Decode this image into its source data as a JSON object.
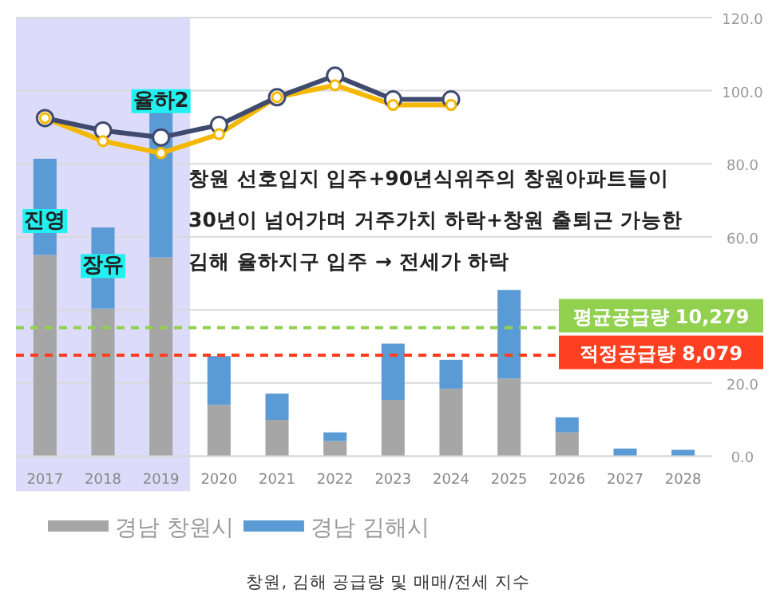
{
  "chart_data": {
    "type": "bar",
    "stacked": true,
    "categories": [
      "2017",
      "2018",
      "2019",
      "2020",
      "2021",
      "2022",
      "2023",
      "2024",
      "2025",
      "2026",
      "2027",
      "2028"
    ],
    "series": [
      {
        "name": "경남 창원시",
        "color": "#a6a6a6",
        "values": [
          16100,
          11800,
          15900,
          4100,
          2900,
          1200,
          4500,
          5400,
          6200,
          1900,
          0,
          0
        ]
      },
      {
        "name": "경남 김해시",
        "color": "#5b9bd5",
        "values": [
          7700,
          6500,
          11700,
          3900,
          2100,
          700,
          4500,
          2300,
          7100,
          1200,
          600,
          500
        ]
      },
      {
        "type": "line",
        "axis": "y2",
        "color": "#3f4a6e",
        "values": [
          92.5,
          89.1,
          87.2,
          90.6,
          98.2,
          104.1,
          97.6,
          97.6,
          null,
          null,
          null,
          null
        ]
      },
      {
        "type": "line",
        "axis": "y2",
        "color": "#f5b800",
        "values": [
          92.5,
          86.2,
          82.9,
          88.1,
          98.2,
          101.5,
          96.1,
          96.1,
          null,
          null,
          null,
          null
        ]
      }
    ],
    "ylim": [
      0,
      35100
    ],
    "y2lim": [
      0,
      120
    ],
    "y2ticks": [
      {
        "value": 0,
        "label": "0.0"
      },
      {
        "value": 20,
        "label": "20.0"
      },
      {
        "value": 40,
        "label": null
      },
      {
        "value": 60,
        "label": "60.0"
      },
      {
        "value": 80,
        "label": "80.0"
      },
      {
        "value": 100,
        "label": "100.0"
      },
      {
        "value": 120,
        "label": "120.0"
      }
    ],
    "grid": "y",
    "marker": "circle",
    "line_style": "solid",
    "legend": "bottom",
    "ref_lines": [
      {
        "axis": "y",
        "value": 10279,
        "label": "평균공급량 10,279",
        "color": "#92d050",
        "line_style": "dashed"
      },
      {
        "axis": "y",
        "value": 8079,
        "label": "적정공급량 8,079",
        "color": "#ff4020",
        "line_style": "dashed"
      }
    ],
    "bands": [
      {
        "axis": "x",
        "from": "2017",
        "to": "2019",
        "color": "#dcdcfa"
      }
    ],
    "annotations": [
      {
        "text": "진영",
        "x": "2017",
        "y": 19000
      },
      {
        "text": "장유",
        "x": "2018",
        "y": 15400
      },
      {
        "text": "율하2",
        "x": "2019",
        "y": 28600
      },
      "창원 선호입지 입주+90년식위주의 창원아파트들이\n30년이 넘어가며 거주가치 하락+창원 출퇴근 가능한\n김해 율하지구 입주 → 전세가 하락",
      "창원, 김해 공급량 및 매매/전세 지수"
    ]
  }
}
